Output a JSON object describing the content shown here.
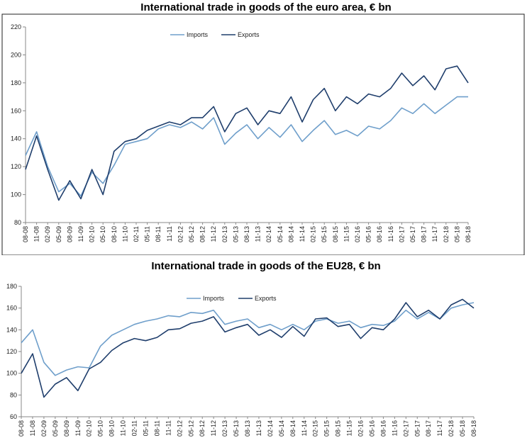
{
  "chart_data": [
    {
      "type": "line",
      "title": "International trade in goods of the euro area, € bn",
      "xlabel": "",
      "ylabel": "",
      "ylim": [
        80,
        220
      ],
      "yticks": [
        "220",
        "200",
        "180",
        "160",
        "140",
        "120",
        "100",
        "80"
      ],
      "categories": [
        "08-08",
        "11-08",
        "02-09",
        "05-09",
        "08-09",
        "11-09",
        "02-10",
        "05-10",
        "08-10",
        "11-10",
        "02-11",
        "05-11",
        "08-11",
        "11-11",
        "02-12",
        "05-12",
        "08-12",
        "11-12",
        "02-13",
        "05-13",
        "08-13",
        "11-13",
        "02-14",
        "05-14",
        "08-14",
        "11-14",
        "02-15",
        "05-15",
        "08-15",
        "11-15",
        "02-16",
        "05-16",
        "08-16",
        "11-16",
        "02-17",
        "05-17",
        "08-17",
        "11-17",
        "02-18",
        "05-18",
        "08-18"
      ],
      "series": [
        {
          "name": "Imports",
          "color": "#6f9fcb",
          "values": [
            128,
            145,
            120,
            102,
            108,
            99,
            116,
            108,
            121,
            136,
            138,
            140,
            147,
            150,
            148,
            152,
            147,
            155,
            136,
            144,
            150,
            140,
            148,
            141,
            150,
            138,
            146,
            153,
            143,
            146,
            142,
            149,
            147,
            153,
            162,
            158,
            165,
            158,
            164,
            170,
            170
          ]
        },
        {
          "name": "Exports",
          "color": "#1f3e6c",
          "values": [
            118,
            142,
            118,
            96,
            110,
            97,
            118,
            100,
            131,
            138,
            140,
            146,
            149,
            152,
            150,
            155,
            155,
            163,
            145,
            158,
            162,
            150,
            160,
            158,
            170,
            152,
            168,
            176,
            160,
            170,
            165,
            172,
            170,
            176,
            187,
            178,
            185,
            175,
            190,
            192,
            180
          ]
        }
      ]
    },
    {
      "type": "line",
      "title": "International trade in goods of the EU28, € bn",
      "xlabel": "",
      "ylabel": "",
      "ylim": [
        60,
        180
      ],
      "yticks": [
        "180",
        "160",
        "140",
        "120",
        "100",
        "80",
        "60"
      ],
      "categories": [
        "08-08",
        "11-08",
        "02-09",
        "05-09",
        "08-09",
        "11-09",
        "02-10",
        "05-10",
        "08-10",
        "11-10",
        "02-11",
        "05-11",
        "08-11",
        "11-11",
        "02-12",
        "05-12",
        "08-12",
        "11-12",
        "02-13",
        "05-13",
        "08-13",
        "11-13",
        "02-14",
        "05-14",
        "08-14",
        "11-14",
        "02-15",
        "05-15",
        "08-15",
        "11-15",
        "02-16",
        "05-16",
        "08-16",
        "11-16",
        "02-17",
        "05-17",
        "08-17",
        "11-17",
        "02-18",
        "05-18",
        "08-18"
      ],
      "series": [
        {
          "name": "Imports",
          "color": "#6f9fcb",
          "values": [
            128,
            140,
            110,
            98,
            103,
            106,
            105,
            125,
            135,
            140,
            145,
            148,
            150,
            153,
            152,
            156,
            155,
            158,
            145,
            148,
            150,
            142,
            145,
            140,
            145,
            140,
            148,
            150,
            146,
            148,
            142,
            145,
            144,
            148,
            158,
            150,
            156,
            150,
            160,
            163,
            165
          ]
        },
        {
          "name": "Exports",
          "color": "#1f3e6c",
          "values": [
            100,
            118,
            78,
            90,
            96,
            84,
            104,
            110,
            121,
            128,
            132,
            130,
            133,
            140,
            141,
            146,
            148,
            152,
            138,
            142,
            145,
            135,
            140,
            133,
            143,
            134,
            150,
            151,
            143,
            145,
            132,
            142,
            140,
            150,
            165,
            152,
            158,
            150,
            163,
            168,
            160
          ]
        }
      ]
    }
  ]
}
